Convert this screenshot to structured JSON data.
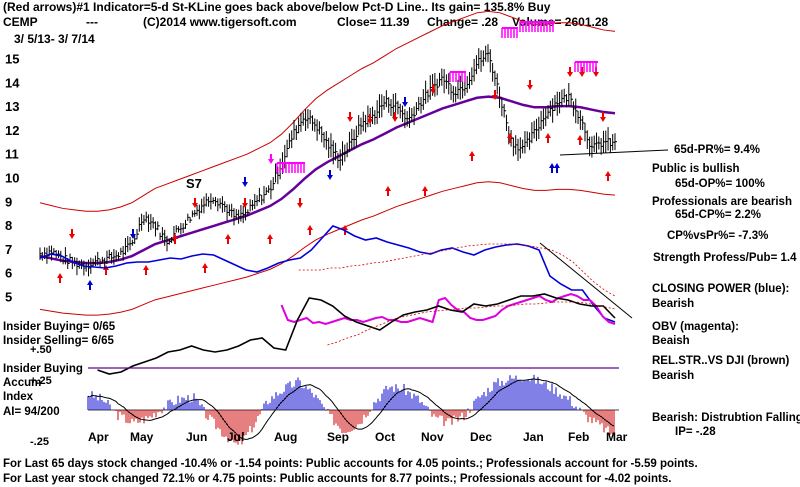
{
  "header": {
    "line1": "(Red arrows)#1 Indicator=5-d St-KLine goes back above/below Pct-D Line.. Its gain= 135.8% Buy",
    "symbol": "CEMP",
    "dashes": "---",
    "copyright": "(C)2014 www.tigersoft.com",
    "close": "Close= 11.39",
    "change": "Change= .28",
    "volume": "Volume= 2601.28",
    "date_range": "3/ 5/13- 3/ 7/14"
  },
  "annotations": {
    "s7": "S7",
    "pr65": "65d-PR%= 9.4%",
    "public_bullish": "Public is bullish",
    "op65": "65d-OP%= 100%",
    "prof_bearish": "Professionals are bearish",
    "cp65": "65d-CP%= 2.2%",
    "cpvspr": "CP%vsPr%= -7.3%",
    "strength": "Strength Profess/Pub= 1.4",
    "closing_power": "CLOSING POWER (blue):",
    "closing_power_val": "Bearish",
    "obv": "OBV (magenta):",
    "obv_val": "Beaish",
    "relstr": "REL.STR..VS DJI (brown)",
    "relstr_val": "Bearish",
    "insider_buying": "Insider Buying= 0/65",
    "insider_selling": "Insider Selling= 6/65",
    "insider_buying2": "Insider Buying",
    "accum": "Accum",
    "index": "Index",
    "ai": "AI= 94/200",
    "bearish_dist": "Bearish: Distrubtion Falling",
    "ip": "IP= -.28",
    "acc_p50": "+.50",
    "acc_p25": "+.25",
    "acc_m25": "-.25"
  },
  "footer": {
    "line1": "For Last 65 days stock changed -10.4% or -1.54 points:  Public accounts for  4.05 points.;  Professionals account for -5.59 points.",
    "line2": "For Last year stock changed  72.1% or  4.75 points:  Public accounts for 8.77 points.;  Professionals account for -4.02 points."
  },
  "colors": {
    "price_bars": "#000000",
    "band": "#cc0000",
    "moving_average": "#660099",
    "closing_power": "#0000dd",
    "obv": "#dd00dd",
    "relative_strength": "#000000",
    "accum_pos": "#0000cc",
    "accum_neg": "#cc0000",
    "arrows": "#ee0000",
    "buy_arrow": "#0000cc",
    "sell_markers": "#ff00ff"
  },
  "chart_data": {
    "type": "line",
    "x_labels": [
      "Apr",
      "May",
      "Jun",
      "Jul",
      "Aug",
      "Sep",
      "Oct",
      "Nov",
      "Dec",
      "Jan",
      "Feb",
      "Mar"
    ],
    "y_ticks": [
      5,
      6,
      7,
      8,
      9,
      10,
      11,
      12,
      13,
      14,
      15
    ],
    "ylim": [
      4.6,
      15.6
    ],
    "grid": false,
    "price_x": [
      0,
      0.02,
      0.04,
      0.06,
      0.08,
      0.1,
      0.12,
      0.14,
      0.16,
      0.18,
      0.2,
      0.22,
      0.24,
      0.26,
      0.28,
      0.3,
      0.32,
      0.34,
      0.36,
      0.38,
      0.4,
      0.42,
      0.44,
      0.46,
      0.48,
      0.5,
      0.52,
      0.54,
      0.56,
      0.58,
      0.6,
      0.62,
      0.64,
      0.66,
      0.68,
      0.7,
      0.72,
      0.74,
      0.76,
      0.78,
      0.8,
      0.82,
      0.84,
      0.86,
      0.88,
      0.9,
      0.92,
      0.94,
      0.96,
      0.98,
      1.0
    ],
    "price_y": [
      6.8,
      6.9,
      6.6,
      6.4,
      6.3,
      6.5,
      6.6,
      6.8,
      7.2,
      8.4,
      8.0,
      7.3,
      7.8,
      8.3,
      8.8,
      9.2,
      8.8,
      8.3,
      8.5,
      9.1,
      9.5,
      10.6,
      11.8,
      12.6,
      12.2,
      11.4,
      10.8,
      11.4,
      12.3,
      12.6,
      13.2,
      13.0,
      12.4,
      13.1,
      13.7,
      14.2,
      13.6,
      13.9,
      14.8,
      15.2,
      13.4,
      11.5,
      11.2,
      11.9,
      12.7,
      13.2,
      13.4,
      12.5,
      11.2,
      11.5,
      11.4
    ],
    "ma_y": [
      6.7,
      6.6,
      6.5,
      6.45,
      6.4,
      6.4,
      6.45,
      6.55,
      6.7,
      6.95,
      7.2,
      7.35,
      7.5,
      7.65,
      7.8,
      7.95,
      8.1,
      8.25,
      8.4,
      8.6,
      8.8,
      9.1,
      9.5,
      9.95,
      10.35,
      10.65,
      10.9,
      11.15,
      11.4,
      11.6,
      11.85,
      12.1,
      12.3,
      12.5,
      12.7,
      12.9,
      13.05,
      13.2,
      13.35,
      13.4,
      13.35,
      13.2,
      13.05,
      12.95,
      12.95,
      13.0,
      13.0,
      12.95,
      12.85,
      12.75,
      12.7
    ]
  }
}
